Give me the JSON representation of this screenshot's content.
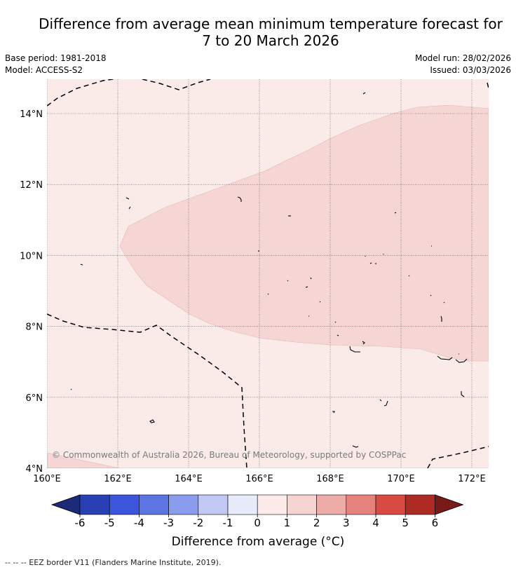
{
  "title": {
    "line1": "Difference from average mean minimum temperature forecast for",
    "line2": "7 to 20 March 2026"
  },
  "meta": {
    "base_period": "Base period: 1981-2018",
    "model": "Model: ACCESS-S2",
    "model_run": "Model run: 28/02/2026",
    "issued": "Issued: 03/03/2026"
  },
  "map": {
    "background_color": "#faebe9",
    "anomaly_shade_color": "#f5d6d4",
    "lat_labels": [
      "14°N",
      "12°N",
      "10°N",
      "8°N",
      "6°N",
      "4°N"
    ],
    "lat_values": [
      14,
      12,
      10,
      8,
      6,
      4
    ],
    "lon_labels": [
      "160°E",
      "162°E",
      "164°E",
      "166°E",
      "168°E",
      "170°E",
      "172°E"
    ],
    "lon_values": [
      160,
      162,
      164,
      166,
      168,
      170,
      172
    ],
    "copyright": "© Commonwealth of Australia 2026, Bureau of Meteorology, supported by COSPPac"
  },
  "colorbar": {
    "colors": [
      "#1d2a7a",
      "#2940b5",
      "#3b56dc",
      "#5d74e3",
      "#8a9ced",
      "#c0c8f3",
      "#e8ebfa",
      "#fbece9",
      "#f5d4d2",
      "#eeaca9",
      "#e6827e",
      "#d94a43",
      "#ad2b23",
      "#7a1a18"
    ],
    "tick_labels": [
      "-6",
      "-5",
      "-4",
      "-3",
      "-2",
      "-1",
      "0",
      "1",
      "2",
      "3",
      "4",
      "5",
      "6"
    ],
    "label": "Difference from average (°C)"
  },
  "footnote": "-- -- -- EEZ border V11 (Flanders Marine Institute, 2019)."
}
